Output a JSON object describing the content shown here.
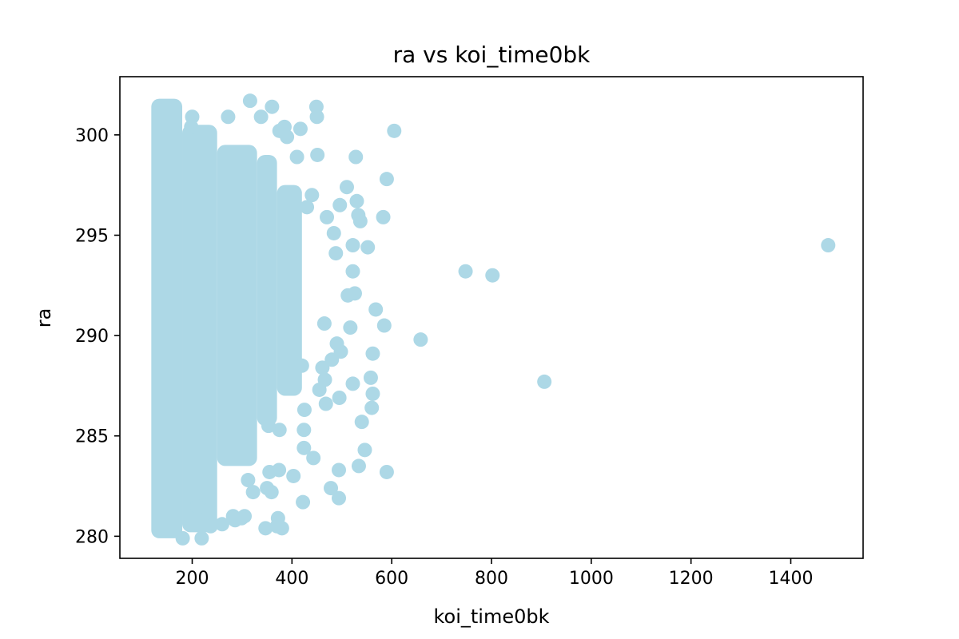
{
  "chart_data": {
    "type": "scatter",
    "title": "ra vs koi_time0bk",
    "xlabel": "koi_time0bk",
    "ylabel": "ra",
    "xlim": [
      55,
      1545
    ],
    "ylim": [
      278.9,
      302.9
    ],
    "xticks": [
      200,
      400,
      600,
      800,
      1000,
      1200,
      1400
    ],
    "yticks": [
      280,
      285,
      290,
      295,
      300
    ],
    "grid": false,
    "marker_color": "#add8e6",
    "series": [
      {
        "points": [
          [
            1475,
            294.5
          ],
          [
            906,
            287.7
          ],
          [
            802,
            293.0
          ],
          [
            748,
            293.2
          ],
          [
            658,
            289.8
          ],
          [
            605,
            300.2
          ],
          [
            590,
            297.8
          ],
          [
            590,
            283.2
          ],
          [
            585,
            290.5
          ],
          [
            583,
            295.9
          ],
          [
            568,
            291.3
          ],
          [
            562,
            289.1
          ],
          [
            562,
            287.1
          ],
          [
            560,
            286.4
          ],
          [
            558,
            287.9
          ],
          [
            552,
            294.4
          ],
          [
            546,
            284.3
          ],
          [
            540,
            285.7
          ],
          [
            537,
            295.7
          ],
          [
            533,
            296.0
          ],
          [
            534,
            283.5
          ],
          [
            530,
            296.7
          ],
          [
            528,
            298.9
          ],
          [
            526,
            292.1
          ],
          [
            522,
            293.2
          ],
          [
            522,
            294.5
          ],
          [
            522,
            287.6
          ],
          [
            517,
            290.4
          ],
          [
            512,
            292.0
          ],
          [
            510,
            297.4
          ],
          [
            498,
            289.2
          ],
          [
            496,
            296.5
          ],
          [
            495,
            286.9
          ],
          [
            494,
            283.3
          ],
          [
            494,
            281.9
          ],
          [
            490,
            289.6
          ],
          [
            488,
            294.1
          ],
          [
            484,
            295.1
          ],
          [
            480,
            288.8
          ],
          [
            478,
            282.4
          ],
          [
            470,
            295.9
          ],
          [
            468,
            286.6
          ],
          [
            466,
            287.8
          ],
          [
            465,
            290.6
          ],
          [
            461,
            288.4
          ],
          [
            455,
            287.3
          ],
          [
            451,
            299.0
          ],
          [
            450,
            300.9
          ],
          [
            449,
            301.4
          ],
          [
            443,
            283.9
          ],
          [
            440,
            297.0
          ],
          [
            430,
            296.4
          ],
          [
            425,
            286.3
          ],
          [
            424,
            285.3
          ],
          [
            424,
            284.4
          ],
          [
            422,
            281.7
          ],
          [
            420,
            288.5
          ],
          [
            417,
            300.3
          ],
          [
            410,
            298.9
          ],
          [
            403,
            283.0
          ],
          [
            390,
            299.9
          ],
          [
            385,
            300.4
          ],
          [
            380,
            280.4
          ],
          [
            375,
            300.2
          ],
          [
            375,
            285.3
          ],
          [
            374,
            283.3
          ],
          [
            372,
            280.9
          ],
          [
            370,
            280.5
          ],
          [
            360,
            301.4
          ],
          [
            359,
            282.2
          ],
          [
            355,
            283.2
          ],
          [
            353,
            285.5
          ],
          [
            350,
            282.4
          ],
          [
            347,
            280.4
          ],
          [
            338,
            300.9
          ],
          [
            322,
            282.2
          ],
          [
            316,
            301.7
          ],
          [
            312,
            282.8
          ],
          [
            305,
            281.0
          ],
          [
            299,
            280.9
          ],
          [
            286,
            280.8
          ],
          [
            282,
            281.0
          ],
          [
            272,
            300.9
          ],
          [
            260,
            280.6
          ],
          [
            237,
            280.5
          ],
          [
            232,
            281.3
          ],
          [
            219,
            279.9
          ],
          [
            210,
            281.5
          ],
          [
            200,
            300.9
          ],
          [
            198,
            300.4
          ],
          [
            181,
            279.9
          ]
        ]
      }
    ]
  }
}
